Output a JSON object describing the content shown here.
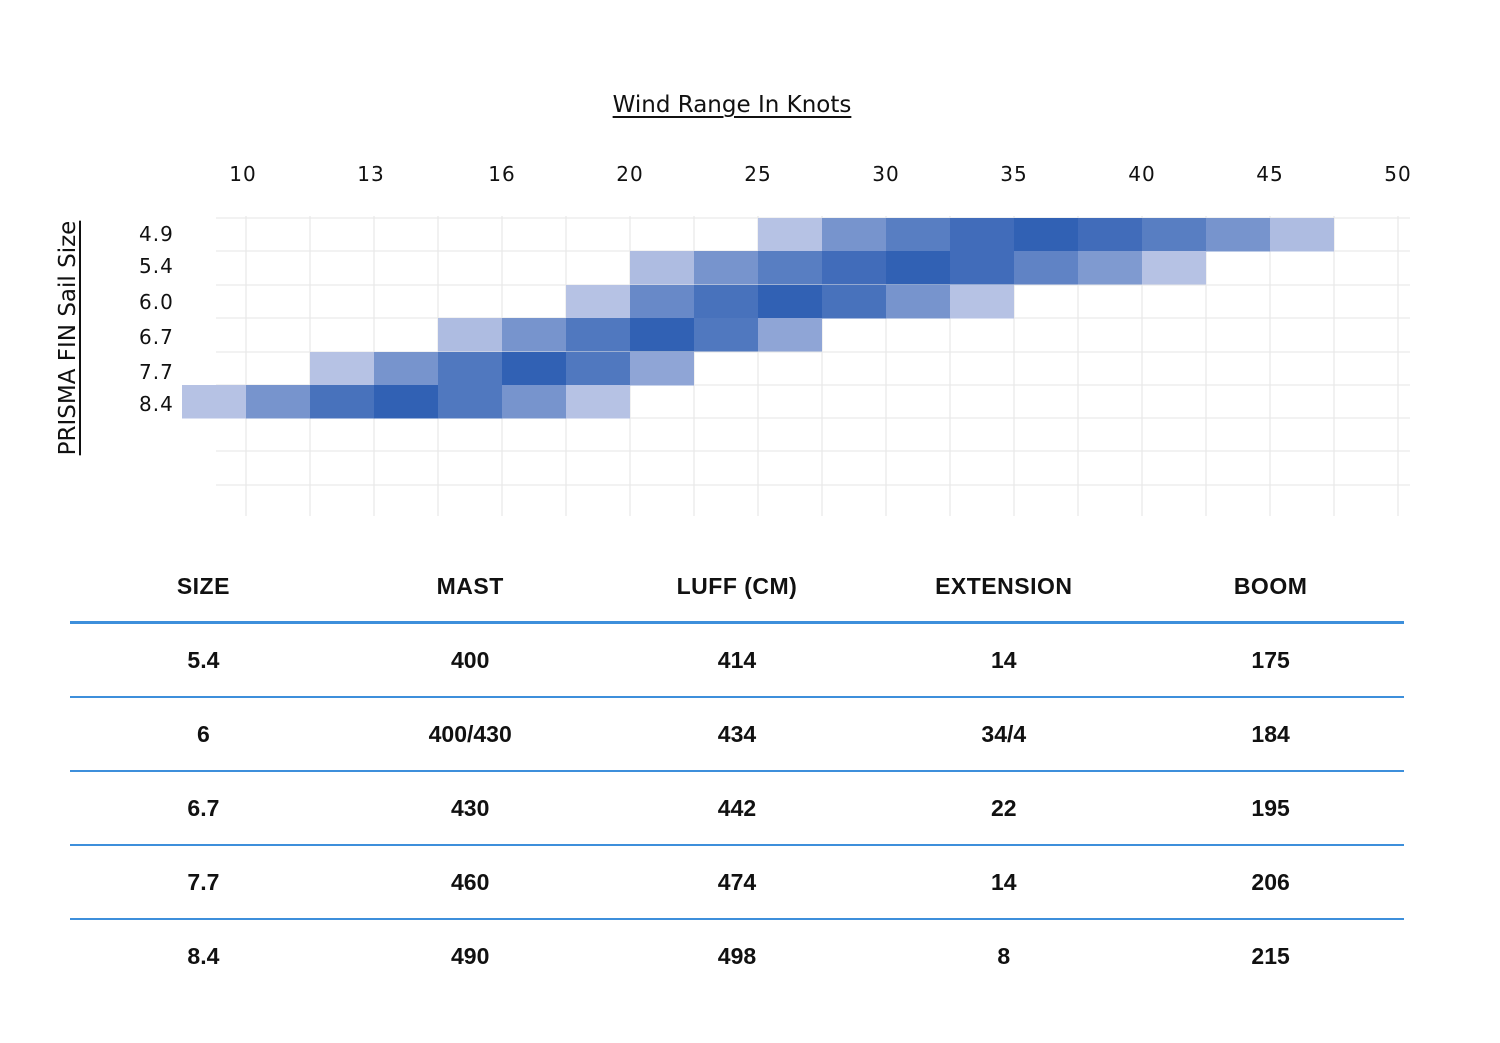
{
  "chart_data": {
    "type": "heatmap",
    "title": "Wind Range In Knots",
    "ylabel": "PRISMA FIN Sail Size",
    "x_ticks": [
      "10",
      "13",
      "16",
      "20",
      "25",
      "30",
      "35",
      "40",
      "45",
      "50"
    ],
    "y_categories": [
      "4.9",
      "5.4",
      "6.0",
      "6.7",
      "7.7",
      "8.4"
    ],
    "columns": 19,
    "color_scale": [
      "#cdd3ec",
      "#3161b4"
    ],
    "rows": [
      {
        "size": "4.9",
        "start_col": 9,
        "intensity": [
          0.15,
          0.55,
          0.75,
          0.9,
          1.0,
          0.9,
          0.75,
          0.55,
          0.2
        ]
      },
      {
        "size": "5.4",
        "start_col": 7,
        "intensity": [
          0.2,
          0.55,
          0.75,
          0.9,
          1.0,
          0.9,
          0.7,
          0.5,
          0.15
        ]
      },
      {
        "size": "6.0",
        "start_col": 6,
        "intensity": [
          0.15,
          0.65,
          0.85,
          1.0,
          0.85,
          0.55,
          0.15
        ]
      },
      {
        "size": "6.7",
        "start_col": 4,
        "intensity": [
          0.2,
          0.55,
          0.8,
          1.0,
          0.8,
          0.4
        ]
      },
      {
        "size": "7.7",
        "start_col": 2,
        "intensity": [
          0.15,
          0.55,
          0.8,
          1.0,
          0.8,
          0.4
        ]
      },
      {
        "size": "8.4",
        "start_col": 0,
        "intensity": [
          0.15,
          0.55,
          0.85,
          1.0,
          0.8,
          0.55,
          0.15
        ]
      }
    ]
  },
  "table": {
    "headers": [
      "SIZE",
      "MAST",
      "LUFF (CM)",
      "EXTENSION",
      "BOOM"
    ],
    "rows": [
      [
        "5.4",
        "400",
        "414",
        "14",
        "175"
      ],
      [
        "6",
        "400/430",
        "434",
        "34/4",
        "184"
      ],
      [
        "6.7",
        "430",
        "442",
        "22",
        "195"
      ],
      [
        "7.7",
        "460",
        "474",
        "14",
        "206"
      ],
      [
        "8.4",
        "490",
        "498",
        "8",
        "215"
      ]
    ]
  }
}
